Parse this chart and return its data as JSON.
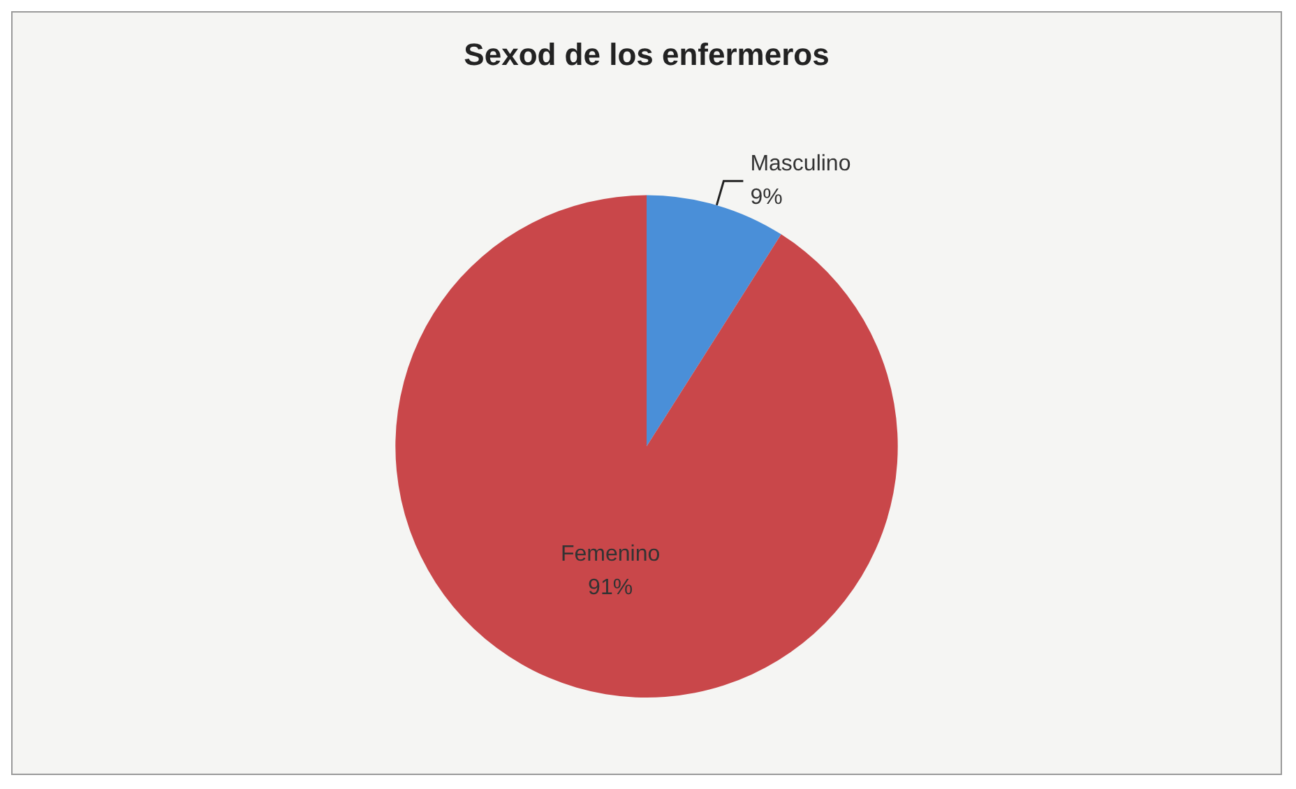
{
  "chart_data": {
    "type": "pie",
    "title": "Sexod de los enfermeros",
    "categories": [
      "Masculino",
      "Femenino"
    ],
    "values": [
      9,
      91
    ],
    "colors": [
      "#4a8fd8",
      "#c9474a"
    ],
    "value_labels": [
      "9%",
      "91%"
    ]
  }
}
